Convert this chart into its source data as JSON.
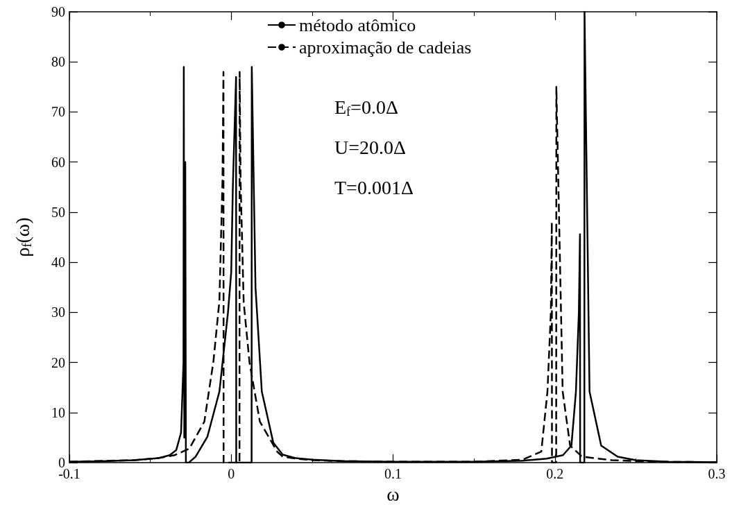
{
  "chart_data": {
    "type": "line",
    "xlabel": "ω",
    "ylabel": "ρ$_{f}$(ω)",
    "xlim": [
      -0.1,
      0.3
    ],
    "xticks": [
      -0.1,
      0,
      0.1,
      0.2,
      0.3
    ],
    "ylim": [
      0,
      90
    ],
    "yticks": [
      0,
      10,
      20,
      30,
      40,
      50,
      60,
      70,
      80,
      90
    ],
    "grid": false,
    "legend": "top",
    "marker": "none",
    "annotations": [
      "E$_{f}$=0.0Δ",
      "U=20.0Δ",
      "T=0.001Δ"
    ],
    "series": [
      {
        "name": "método atômico",
        "color": "#000000",
        "line_style": "solid",
        "x": [
          -0.1,
          -0.08,
          -0.06,
          -0.045,
          -0.038,
          -0.034,
          -0.031,
          -0.0295,
          -0.0293,
          -0.029,
          -0.0284,
          -0.028,
          -0.0263,
          -0.022,
          -0.0147,
          -0.0073,
          -0.002,
          0,
          0.001,
          0.003,
          0.0031,
          0.0126,
          0.0127,
          0.015,
          0.0189,
          0.026,
          0.0318,
          0.04,
          0.05,
          0.07,
          0.1,
          0.15,
          0.18,
          0.195,
          0.205,
          0.2102,
          0.213,
          0.2148,
          0.2155,
          0.2156,
          0.2182,
          0.2183,
          0.2214,
          0.2286,
          0.2388,
          0.25,
          0.27,
          0.3
        ],
        "values": [
          0.2,
          0.3,
          0.5,
          0.9,
          1.5,
          2.5,
          6,
          20,
          79,
          5,
          60,
          0,
          0,
          1.2,
          5.2,
          14.2,
          30,
          38,
          55,
          77,
          0,
          0,
          79,
          35,
          14.2,
          4,
          1.6,
          0.9,
          0.6,
          0.3,
          0.2,
          0.2,
          0.4,
          0.8,
          1.5,
          3.4,
          14.2,
          30,
          45.6,
          0,
          0,
          90,
          14.2,
          3.4,
          1.2,
          0.5,
          0.2,
          0.1
        ]
      },
      {
        "name": "aproximação de cadeias",
        "color": "#000000",
        "line_style": "dashed",
        "x": [
          -0.1,
          -0.06,
          -0.045,
          -0.035,
          -0.0259,
          -0.0166,
          -0.011,
          -0.0073,
          -0.0054,
          -0.0048,
          -0.0047,
          0.0051,
          0.0052,
          0.0058,
          0.0077,
          0.0113,
          0.0177,
          0.0284,
          0.0318,
          0.04,
          0.05,
          0.07,
          0.1,
          0.15,
          0.18,
          0.1916,
          0.1954,
          0.1975,
          0.1981,
          0.1982,
          0.2008,
          0.2009,
          0.2048,
          0.2094,
          0.2167,
          0.2352,
          0.26,
          0.3
        ],
        "values": [
          0.2,
          0.5,
          0.9,
          1.5,
          2.8,
          8.2,
          20.2,
          32.3,
          56.3,
          78,
          0,
          0,
          78,
          56,
          32,
          20,
          8.2,
          2.2,
          1.2,
          0.8,
          0.5,
          0.3,
          0.2,
          0.2,
          0.6,
          2.2,
          14.2,
          30,
          48,
          0,
          0,
          75,
          14.2,
          3.4,
          1.2,
          0.5,
          0.2,
          0.1
        ]
      }
    ]
  }
}
